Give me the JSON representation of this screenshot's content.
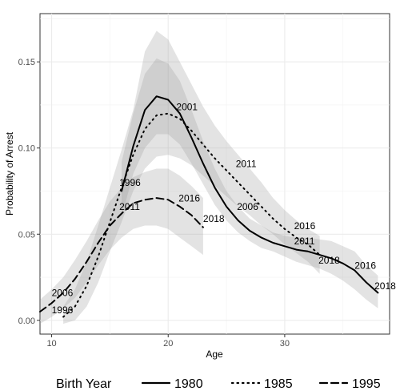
{
  "chart_data": {
    "type": "line",
    "title": "",
    "xlabel": "Age",
    "ylabel": "Probability of Arrest",
    "xlim": [
      9,
      39
    ],
    "ylim": [
      -0.008,
      0.178
    ],
    "x_ticks": [
      10,
      20,
      30
    ],
    "y_ticks": [
      0.0,
      0.05,
      0.1,
      0.15
    ],
    "y_tick_labels": [
      "0.00",
      "0.05",
      "0.10",
      "0.15"
    ],
    "grid": true,
    "legend": {
      "title": "Birth Year",
      "position": "bottom"
    },
    "series": [
      {
        "name": "1980",
        "linestyle": "solid",
        "x": [
          16,
          17,
          18,
          19,
          20,
          21,
          22,
          23,
          24,
          25,
          26,
          27,
          28,
          29,
          30,
          31,
          32,
          33,
          34,
          35,
          36,
          37,
          38
        ],
        "y": [
          0.075,
          0.101,
          0.122,
          0.13,
          0.128,
          0.12,
          0.106,
          0.091,
          0.077,
          0.066,
          0.058,
          0.052,
          0.048,
          0.045,
          0.043,
          0.041,
          0.04,
          0.038,
          0.036,
          0.033,
          0.029,
          0.022,
          0.016
        ],
        "ci_lower": [
          0.06,
          0.085,
          0.1,
          0.108,
          0.108,
          0.102,
          0.091,
          0.079,
          0.067,
          0.058,
          0.051,
          0.046,
          0.042,
          0.04,
          0.037,
          0.034,
          0.032,
          0.03,
          0.027,
          0.023,
          0.018,
          0.012,
          0.007
        ],
        "ci_upper": [
          0.092,
          0.12,
          0.143,
          0.152,
          0.149,
          0.139,
          0.122,
          0.104,
          0.088,
          0.075,
          0.066,
          0.059,
          0.055,
          0.051,
          0.049,
          0.048,
          0.048,
          0.047,
          0.046,
          0.043,
          0.04,
          0.032,
          0.026
        ]
      },
      {
        "name": "1985",
        "linestyle": "dotted",
        "x": [
          11,
          12,
          13,
          14,
          15,
          16,
          17,
          18,
          19,
          20,
          21,
          22,
          23,
          24,
          25,
          26,
          27,
          28,
          29,
          30,
          31,
          32,
          33
        ],
        "y": [
          0.002,
          0.008,
          0.02,
          0.037,
          0.057,
          0.077,
          0.096,
          0.111,
          0.119,
          0.12,
          0.117,
          0.11,
          0.102,
          0.094,
          0.087,
          0.08,
          0.073,
          0.066,
          0.059,
          0.053,
          0.048,
          0.044,
          0.038
        ],
        "ci_lower": [
          -0.002,
          0.0,
          0.008,
          0.022,
          0.04,
          0.057,
          0.075,
          0.088,
          0.095,
          0.096,
          0.094,
          0.09,
          0.084,
          0.078,
          0.072,
          0.066,
          0.061,
          0.055,
          0.05,
          0.044,
          0.039,
          0.034,
          0.027
        ],
        "ci_upper": [
          0.008,
          0.018,
          0.034,
          0.055,
          0.077,
          0.099,
          0.122,
          0.156,
          0.168,
          0.163,
          0.15,
          0.137,
          0.124,
          0.113,
          0.104,
          0.096,
          0.088,
          0.08,
          0.071,
          0.064,
          0.058,
          0.053,
          0.049
        ]
      },
      {
        "name": "1995",
        "linestyle": "dashed",
        "x": [
          9,
          10,
          11,
          12,
          13,
          14,
          15,
          16,
          17,
          18,
          19,
          20,
          21,
          22,
          23
        ],
        "y": [
          0.005,
          0.01,
          0.016,
          0.024,
          0.034,
          0.045,
          0.055,
          0.062,
          0.068,
          0.07,
          0.071,
          0.07,
          0.066,
          0.061,
          0.054
        ],
        "ci_lower": [
          -0.002,
          0.002,
          0.007,
          0.013,
          0.022,
          0.032,
          0.041,
          0.048,
          0.053,
          0.055,
          0.055,
          0.053,
          0.048,
          0.043,
          0.038
        ],
        "ci_upper": [
          0.012,
          0.018,
          0.025,
          0.035,
          0.046,
          0.058,
          0.069,
          0.077,
          0.083,
          0.086,
          0.088,
          0.088,
          0.084,
          0.078,
          0.071
        ]
      }
    ],
    "annotations": [
      {
        "text": "2001",
        "x": 20.7,
        "y": 0.122
      },
      {
        "text": "1996",
        "x": 15.8,
        "y": 0.078
      },
      {
        "text": "2016",
        "x": 20.9,
        "y": 0.069
      },
      {
        "text": "2018",
        "x": 23.0,
        "y": 0.057
      },
      {
        "text": "2011",
        "x": 15.8,
        "y": 0.064
      },
      {
        "text": "2011",
        "x": 25.8,
        "y": 0.089
      },
      {
        "text": "2006",
        "x": 25.9,
        "y": 0.064
      },
      {
        "text": "2016",
        "x": 30.8,
        "y": 0.053
      },
      {
        "text": "2011",
        "x": 30.8,
        "y": 0.044
      },
      {
        "text": "2018",
        "x": 32.9,
        "y": 0.033
      },
      {
        "text": "2016",
        "x": 36.0,
        "y": 0.03
      },
      {
        "text": "2018",
        "x": 37.7,
        "y": 0.018
      },
      {
        "text": "2006",
        "x": 10.0,
        "y": 0.014
      },
      {
        "text": "1996",
        "x": 10.0,
        "y": 0.004
      }
    ]
  }
}
